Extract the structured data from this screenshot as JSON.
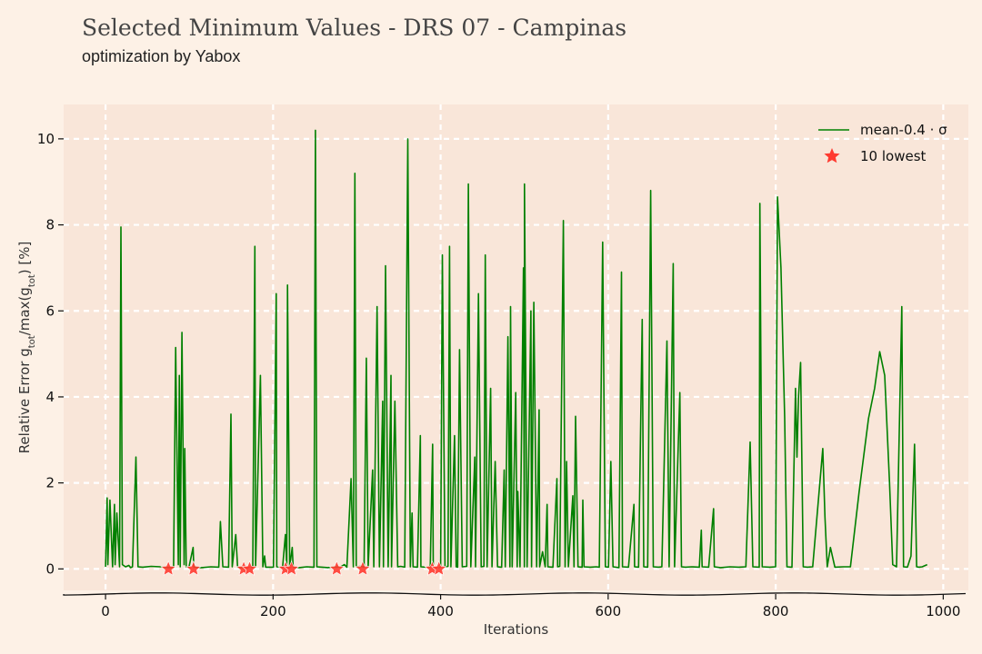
{
  "header": {
    "title": "Selected Minimum Values - DRS 07 - Campinas",
    "subtitle": "optimization by Yabox"
  },
  "colors": {
    "background": "#fdf1e6",
    "plot_background": "#f9e6d9",
    "grid": "#ffffff",
    "line": "#008000",
    "marker": "#ff3b30",
    "text": "#111111"
  },
  "chart_data": {
    "type": "line",
    "xlabel": "Iterations",
    "ylabel": "Relative Error g_tot/max(g_tot) [%]",
    "xlim": [
      -50,
      1030
    ],
    "ylim": [
      -0.5,
      10.8
    ],
    "xticks": [
      0,
      200,
      400,
      600,
      800,
      1000
    ],
    "yticks": [
      0,
      2,
      4,
      6,
      8,
      10
    ],
    "grid": true,
    "legend_position": "top-right",
    "series": [
      {
        "name": "mean-0.4 · σ",
        "kind": "line",
        "points": [
          [
            0,
            0.05
          ],
          [
            1,
            1.65
          ],
          [
            3,
            0.1
          ],
          [
            6,
            1.6
          ],
          [
            8,
            0.05
          ],
          [
            10,
            1.5
          ],
          [
            12,
            0.1
          ],
          [
            14,
            1.3
          ],
          [
            16,
            0.05
          ],
          [
            18,
            7.95
          ],
          [
            21,
            0.1
          ],
          [
            24,
            0.05
          ],
          [
            27,
            0.08
          ],
          [
            30,
            0.03
          ],
          [
            33,
            0.05
          ],
          [
            36,
            2.6
          ],
          [
            38,
            0.05
          ],
          [
            45,
            0.04
          ],
          [
            55,
            0.06
          ],
          [
            65,
            0.05
          ],
          [
            75,
            0.03
          ],
          [
            82,
            0.04
          ],
          [
            84,
            5.15
          ],
          [
            86,
            0.1
          ],
          [
            88,
            4.5
          ],
          [
            90,
            0.05
          ],
          [
            91,
            5.5
          ],
          [
            93,
            0.1
          ],
          [
            95,
            2.8
          ],
          [
            97,
            0.05
          ],
          [
            99,
            0.04
          ],
          [
            104,
            0.5
          ],
          [
            106,
            0.04
          ],
          [
            115,
            0.03
          ],
          [
            125,
            0.05
          ],
          [
            135,
            0.04
          ],
          [
            138,
            1.1
          ],
          [
            140,
            0.05
          ],
          [
            146,
            0.04
          ],
          [
            150,
            3.6
          ],
          [
            152,
            0.05
          ],
          [
            155,
            0.8
          ],
          [
            157,
            0.04
          ],
          [
            165,
            0.03
          ],
          [
            170,
            0.05
          ],
          [
            175,
            0.04
          ],
          [
            178,
            7.5
          ],
          [
            180,
            0.05
          ],
          [
            185,
            4.5
          ],
          [
            187,
            0.05
          ],
          [
            190,
            0.3
          ],
          [
            192,
            0.04
          ],
          [
            200,
            0.04
          ],
          [
            203,
            6.4
          ],
          [
            205,
            0.05
          ],
          [
            212,
            0.04
          ],
          [
            214,
            0.8
          ],
          [
            216,
            0.05
          ],
          [
            218,
            6.6
          ],
          [
            220,
            0.05
          ],
          [
            222,
            0.5
          ],
          [
            224,
            0.04
          ],
          [
            232,
            0.03
          ],
          [
            240,
            0.05
          ],
          [
            248,
            0.04
          ],
          [
            251,
            10.2
          ],
          [
            253,
            0.05
          ],
          [
            258,
            0.04
          ],
          [
            265,
            0.03
          ],
          [
            272,
            0.05
          ],
          [
            276,
            0.04
          ],
          [
            280,
            0.05
          ],
          [
            285,
            0.1
          ],
          [
            289,
            0.04
          ],
          [
            293,
            2.1
          ],
          [
            295,
            0.05
          ],
          [
            298,
            9.2
          ],
          [
            300,
            0.05
          ],
          [
            304,
            0.06
          ],
          [
            308,
            0.04
          ],
          [
            312,
            4.9
          ],
          [
            314,
            0.05
          ],
          [
            318,
            2.3
          ],
          [
            320,
            0.05
          ],
          [
            325,
            6.1
          ],
          [
            327,
            0.05
          ],
          [
            330,
            3.9
          ],
          [
            332,
            0.05
          ],
          [
            335,
            7.05
          ],
          [
            337,
            0.05
          ],
          [
            340,
            4.5
          ],
          [
            342,
            0.05
          ],
          [
            346,
            3.9
          ],
          [
            348,
            0.05
          ],
          [
            352,
            0.06
          ],
          [
            358,
            0.04
          ],
          [
            361,
            10.0
          ],
          [
            363,
            0.05
          ],
          [
            366,
            1.3
          ],
          [
            368,
            0.05
          ],
          [
            372,
            0.04
          ],
          [
            375,
            3.1
          ],
          [
            377,
            0.05
          ],
          [
            383,
            0.04
          ],
          [
            387,
            0.05
          ],
          [
            390,
            2.9
          ],
          [
            392,
            0.05
          ],
          [
            394,
            0.04
          ],
          [
            397,
            0.03
          ],
          [
            400,
            0.05
          ],
          [
            403,
            7.3
          ],
          [
            405,
            0.05
          ],
          [
            408,
            0.06
          ],
          [
            411,
            7.5
          ],
          [
            413,
            0.05
          ],
          [
            416,
            3.1
          ],
          [
            418,
            0.05
          ],
          [
            421,
            0.04
          ],
          [
            423,
            5.1
          ],
          [
            425,
            0.05
          ],
          [
            431,
            0.06
          ],
          [
            434,
            8.95
          ],
          [
            436,
            0.05
          ],
          [
            440,
            2.6
          ],
          [
            442,
            0.05
          ],
          [
            446,
            6.4
          ],
          [
            448,
            0.05
          ],
          [
            451,
            0.06
          ],
          [
            454,
            7.3
          ],
          [
            456,
            0.05
          ],
          [
            459,
            4.2
          ],
          [
            461,
            0.05
          ],
          [
            466,
            2.5
          ],
          [
            468,
            0.05
          ],
          [
            472,
            0.04
          ],
          [
            476,
            2.3
          ],
          [
            478,
            0.05
          ],
          [
            480,
            5.4
          ],
          [
            482,
            0.05
          ],
          [
            484,
            6.1
          ],
          [
            486,
            0.05
          ],
          [
            489,
            4.1
          ],
          [
            491,
            0.05
          ],
          [
            493,
            1.8
          ],
          [
            495,
            0.05
          ],
          [
            498,
            7.0
          ],
          [
            500,
            0.05
          ],
          [
            501,
            8.95
          ],
          [
            503,
            0.05
          ],
          [
            507,
            6.0
          ],
          [
            509,
            0.05
          ],
          [
            512,
            6.2
          ],
          [
            514,
            0.05
          ],
          [
            517,
            3.7
          ],
          [
            519,
            0.05
          ],
          [
            522,
            0.4
          ],
          [
            524,
            0.05
          ],
          [
            527,
            1.5
          ],
          [
            529,
            0.05
          ],
          [
            534,
            0.04
          ],
          [
            538,
            2.1
          ],
          [
            540,
            0.05
          ],
          [
            543,
            0.06
          ],
          [
            546,
            8.1
          ],
          [
            548,
            0.05
          ],
          [
            551,
            2.5
          ],
          [
            553,
            0.05
          ],
          [
            557,
            1.7
          ],
          [
            559,
            0.05
          ],
          [
            562,
            3.55
          ],
          [
            564,
            0.05
          ],
          [
            568,
            0.04
          ],
          [
            570,
            1.6
          ],
          [
            572,
            0.05
          ],
          [
            578,
            0.04
          ],
          [
            585,
            0.05
          ],
          [
            590,
            0.04
          ],
          [
            594,
            7.6
          ],
          [
            596,
            0.05
          ],
          [
            600,
            0.04
          ],
          [
            604,
            2.5
          ],
          [
            606,
            0.05
          ],
          [
            612,
            0.03
          ],
          [
            616,
            6.9
          ],
          [
            618,
            0.05
          ],
          [
            624,
            0.04
          ],
          [
            630,
            1.5
          ],
          [
            632,
            0.05
          ],
          [
            637,
            0.04
          ],
          [
            640,
            5.8
          ],
          [
            642,
            0.05
          ],
          [
            648,
            0.04
          ],
          [
            651,
            8.8
          ],
          [
            653,
            0.05
          ],
          [
            660,
            0.04
          ],
          [
            665,
            0.05
          ],
          [
            670,
            5.3
          ],
          [
            672,
            0.05
          ],
          [
            678,
            7.1
          ],
          [
            680,
            0.05
          ],
          [
            685,
            4.1
          ],
          [
            687,
            0.05
          ],
          [
            693,
            0.04
          ],
          [
            700,
            0.05
          ],
          [
            708,
            0.04
          ],
          [
            711,
            0.9
          ],
          [
            713,
            0.05
          ],
          [
            720,
            0.04
          ],
          [
            725,
            1.4
          ],
          [
            727,
            0.05
          ],
          [
            735,
            0.03
          ],
          [
            745,
            0.05
          ],
          [
            755,
            0.04
          ],
          [
            765,
            0.05
          ],
          [
            770,
            2.95
          ],
          [
            772,
            0.05
          ],
          [
            780,
            0.04
          ],
          [
            782,
            8.5
          ],
          [
            784,
            0.05
          ],
          [
            792,
            0.04
          ],
          [
            800,
            0.05
          ],
          [
            803,
            8.65
          ],
          [
            806,
            7.0
          ],
          [
            810,
            3.5
          ],
          [
            814,
            0.05
          ],
          [
            820,
            0.04
          ],
          [
            823,
            4.2
          ],
          [
            825,
            2.6
          ],
          [
            828,
            4.0
          ],
          [
            830,
            4.8
          ],
          [
            832,
            0.05
          ],
          [
            838,
            0.04
          ],
          [
            845,
            0.05
          ],
          [
            856,
            2.8
          ],
          [
            858,
            1.2
          ],
          [
            862,
            0.05
          ],
          [
            866,
            0.5
          ],
          [
            870,
            0.04
          ],
          [
            880,
            0.05
          ],
          [
            890,
            0.05
          ],
          [
            900,
            1.8
          ],
          [
            910,
            3.5
          ],
          [
            918,
            4.2
          ],
          [
            925,
            5.05
          ],
          [
            930,
            4.5
          ],
          [
            935,
            2.0
          ],
          [
            940,
            0.1
          ],
          [
            945,
            0.05
          ],
          [
            950,
            6.1
          ],
          [
            952,
            0.05
          ],
          [
            958,
            0.04
          ],
          [
            962,
            0.3
          ],
          [
            965,
            2.9
          ],
          [
            968,
            0.05
          ],
          [
            972,
            0.04
          ],
          [
            975,
            0.05
          ],
          [
            980,
            0.1
          ]
        ]
      },
      {
        "name": "10 lowest",
        "kind": "scatter",
        "marker": "star",
        "x": [
          75,
          105,
          165,
          172,
          215,
          222,
          276,
          307,
          390,
          398
        ],
        "y": [
          0,
          0,
          0,
          0,
          0,
          0,
          0,
          0,
          0,
          0
        ]
      }
    ]
  }
}
